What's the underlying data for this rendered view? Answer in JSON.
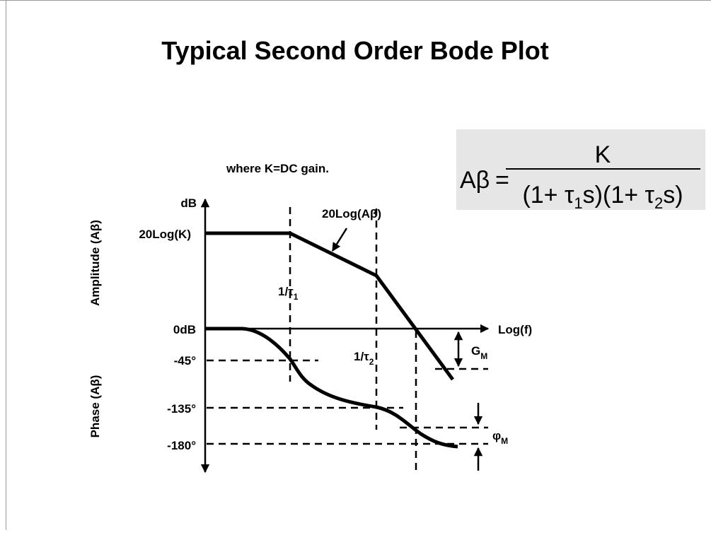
{
  "title": "Typical Second Order Bode Plot",
  "note": "where K=DC gain.",
  "formula": {
    "lhs": "Aβ",
    "eq": "=",
    "numerator": "K",
    "denominator": [
      {
        "text": "(1+ τ"
      },
      {
        "sub": "1"
      },
      {
        "text": "s)(1+ τ"
      },
      {
        "sub": "2"
      },
      {
        "text": "s)"
      }
    ]
  },
  "axes": {
    "y_unit": "dB",
    "amplitude_label": "Amplitude (Aβ)",
    "phase_label": "Phase (Aβ)",
    "x_label": "Log(f)"
  },
  "levels": [
    "20Log(K)",
    "0dB",
    "-45°",
    "-135°",
    "-180°"
  ],
  "curve_label": "20Log(Aβ)",
  "poles": [
    {
      "base": "1/τ",
      "sub": "1"
    },
    {
      "base": "1/τ",
      "sub": "2"
    }
  ],
  "margins": [
    {
      "base": "G",
      "sub": "M"
    },
    {
      "base": "φ",
      "sub": "M"
    }
  ]
}
